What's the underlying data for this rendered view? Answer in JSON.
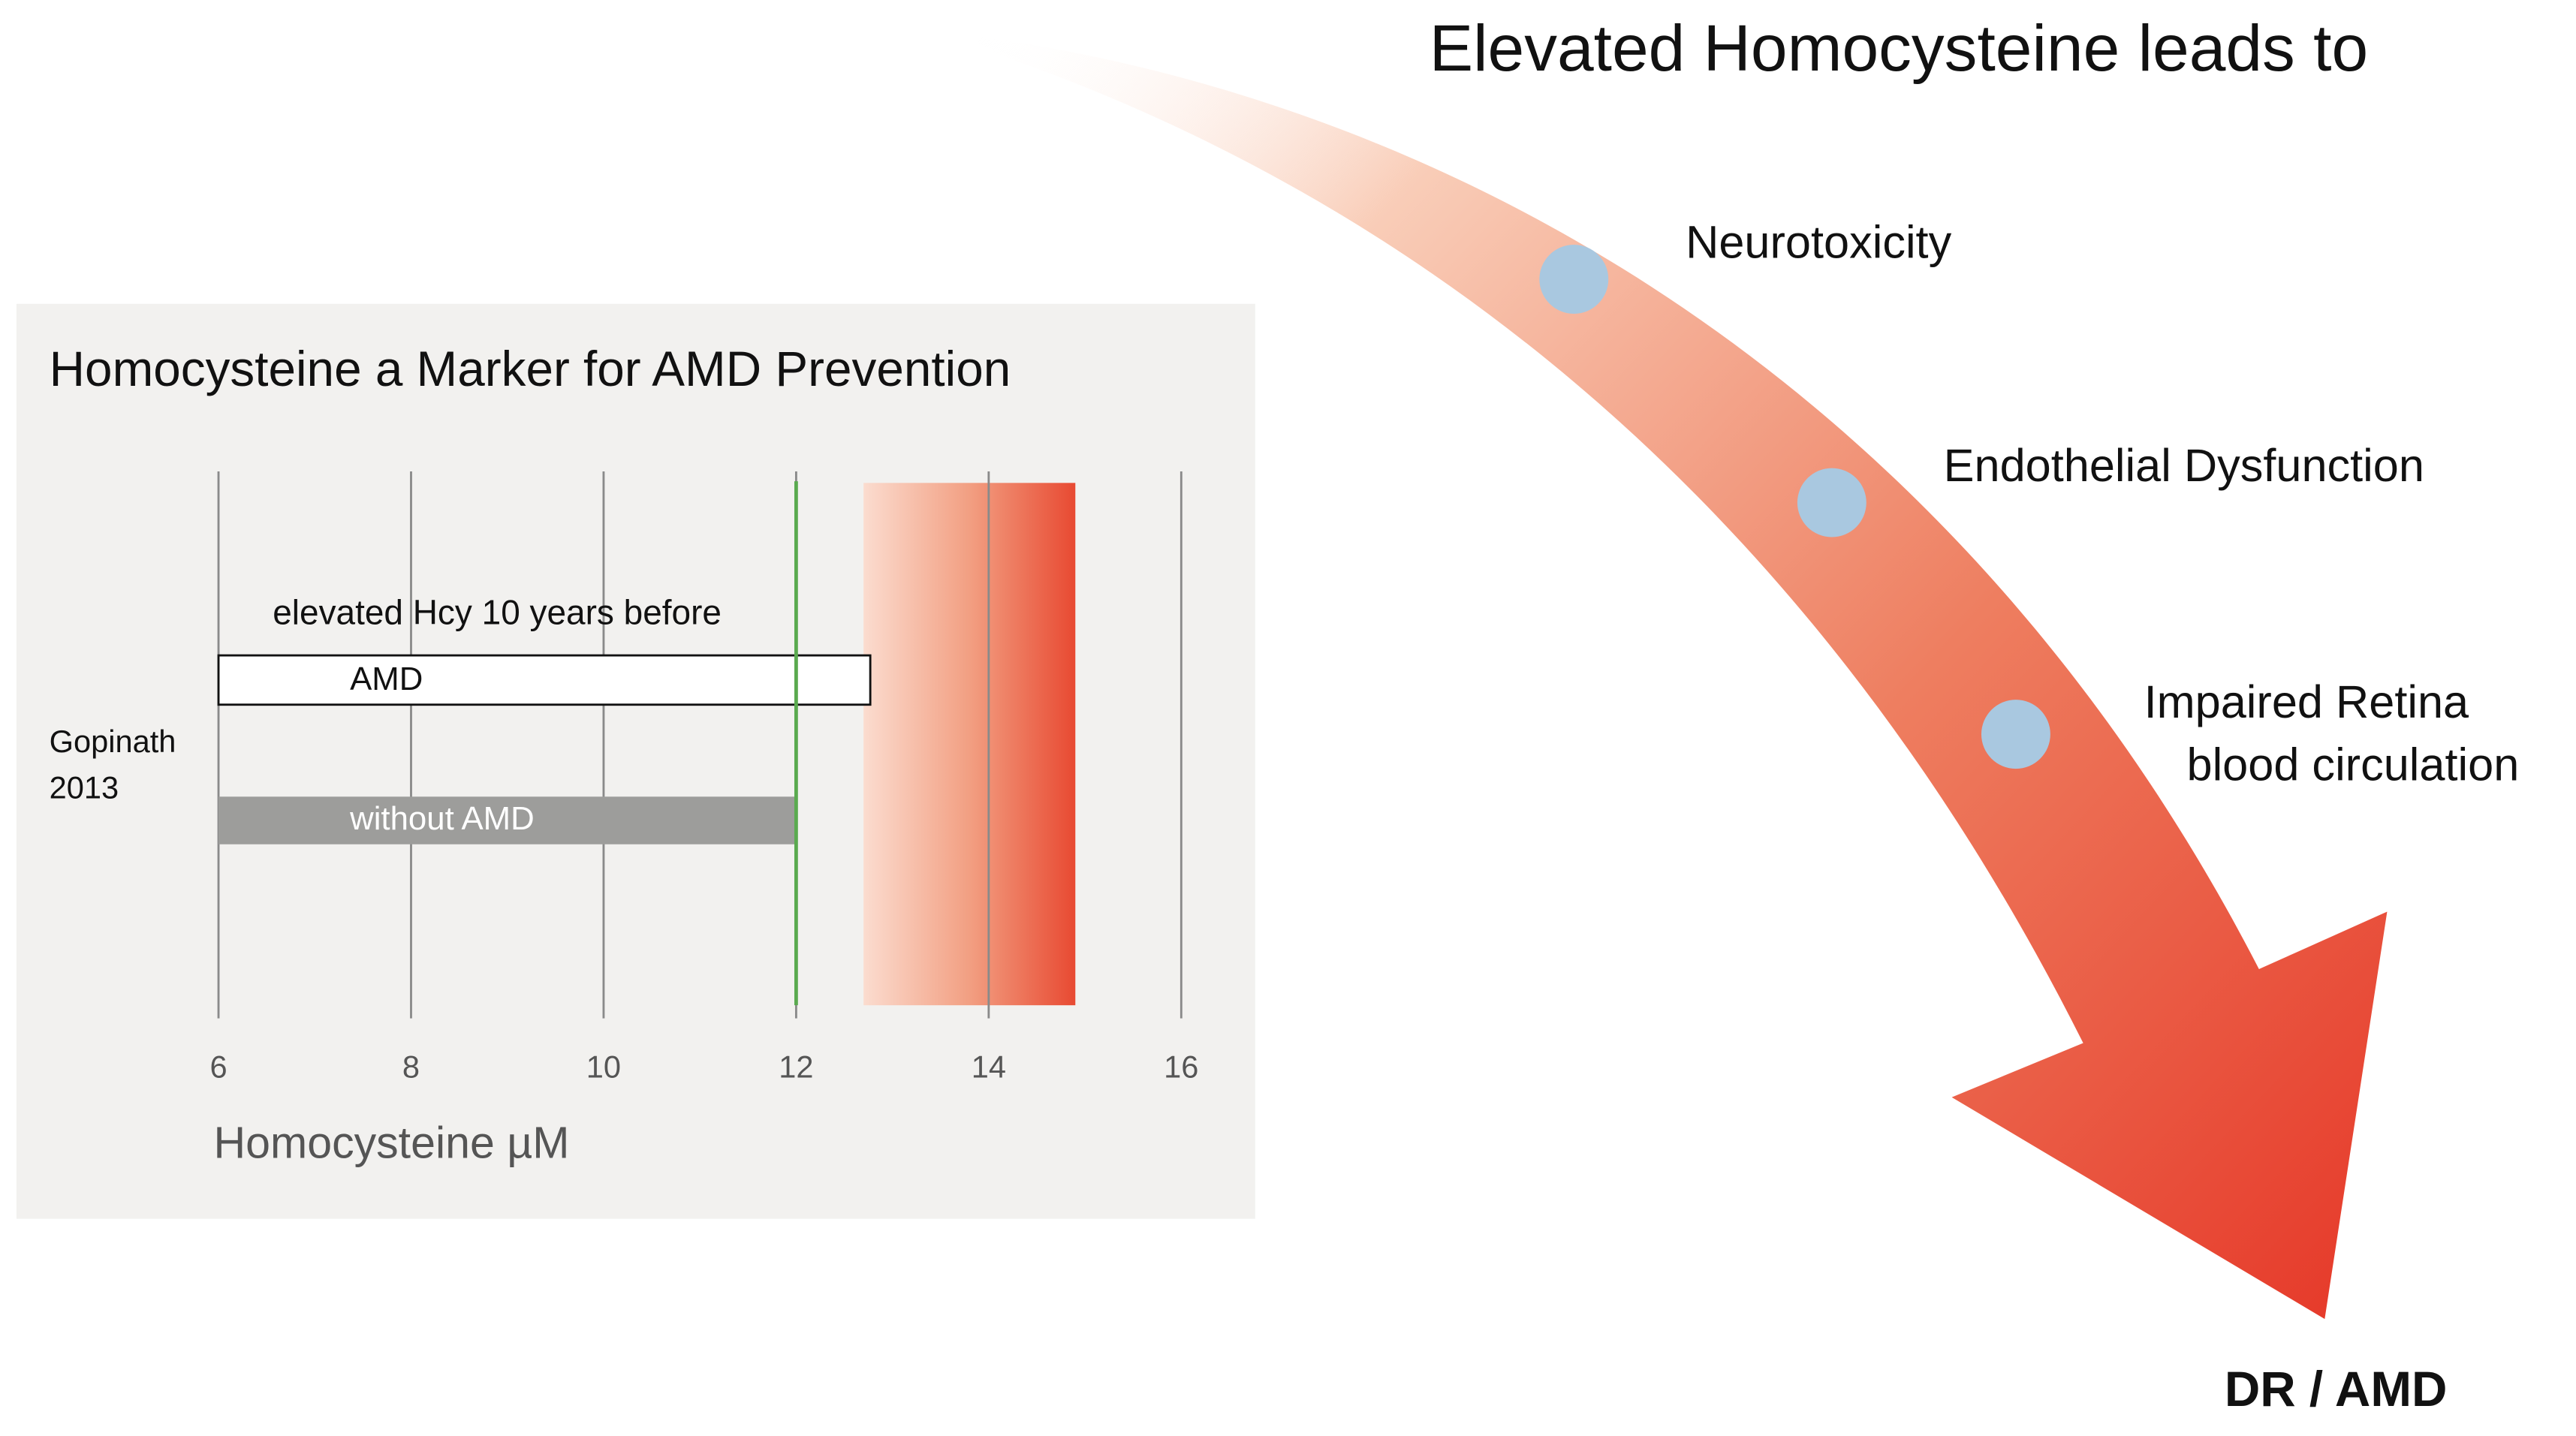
{
  "headline": "Elevated Homocysteine leads to",
  "steps": [
    {
      "label": "Neurotoxicity"
    },
    {
      "label": "Endothelial Dysfunction"
    },
    {
      "label": "Impaired Retina",
      "label2": "blood circulation"
    }
  ],
  "outcome": "DR / AMD",
  "colors": {
    "arrow_start": "#fbe3d8",
    "arrow_end": "#e63a2a",
    "dot": "#a9c8e0",
    "panel_bg": "#f2f1ef",
    "threshold_line": "#5aaa4f",
    "without_amd_bar": "#9d9d9b"
  },
  "chart_data": {
    "type": "bar",
    "orientation": "horizontal",
    "title": "Homocysteine a Marker for AMD Prevention",
    "xlabel": "Homocysteine µM",
    "xlim": [
      6,
      16
    ],
    "xticks": [
      "6",
      "8",
      "10",
      "12",
      "14",
      "16"
    ],
    "grid": true,
    "group_label": [
      "Gopinath",
      "2013"
    ],
    "annotation": "elevated Hcy 10 years before",
    "series": [
      {
        "name": "AMD",
        "start": 6,
        "value": 12.77,
        "fill": "#ffffff"
      },
      {
        "name": "without AMD",
        "start": 6,
        "value": 12.0,
        "fill": "#9d9d9b"
      }
    ],
    "threshold": 12,
    "elevated_range": [
      12.7,
      14.9
    ]
  }
}
